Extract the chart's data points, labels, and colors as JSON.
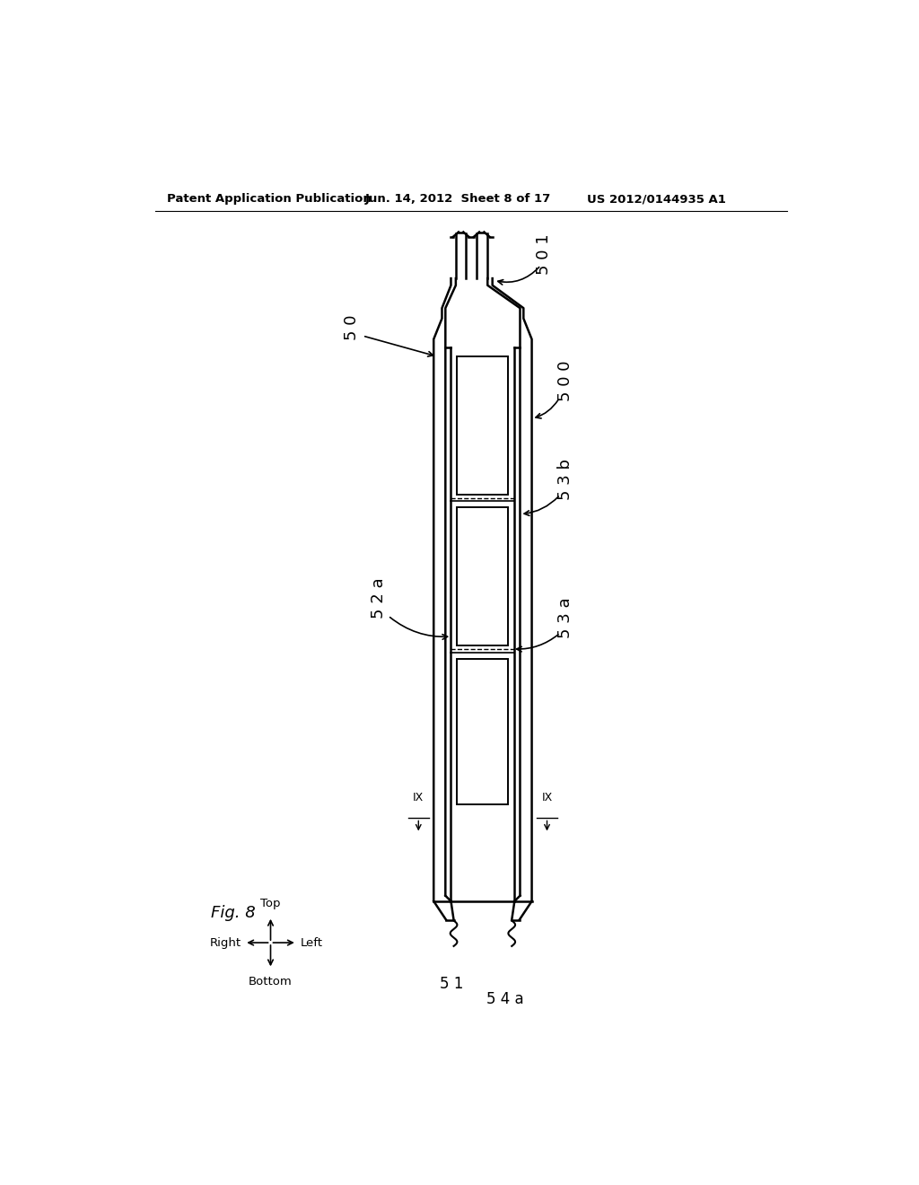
{
  "bg_color": "#ffffff",
  "header_left": "Patent Application Publication",
  "header_mid": "Jun. 14, 2012  Sheet 8 of 17",
  "header_right": "US 2012/0144935 A1",
  "fig_label": "Fig. 8",
  "label_50": "5 0",
  "label_500": "5 0 0",
  "label_501": "5 0 1",
  "label_52a": "5 2 a",
  "label_53a": "5 3 a",
  "label_53b": "5 3 b",
  "label_51": "5 1",
  "label_54a": "5 4 a"
}
